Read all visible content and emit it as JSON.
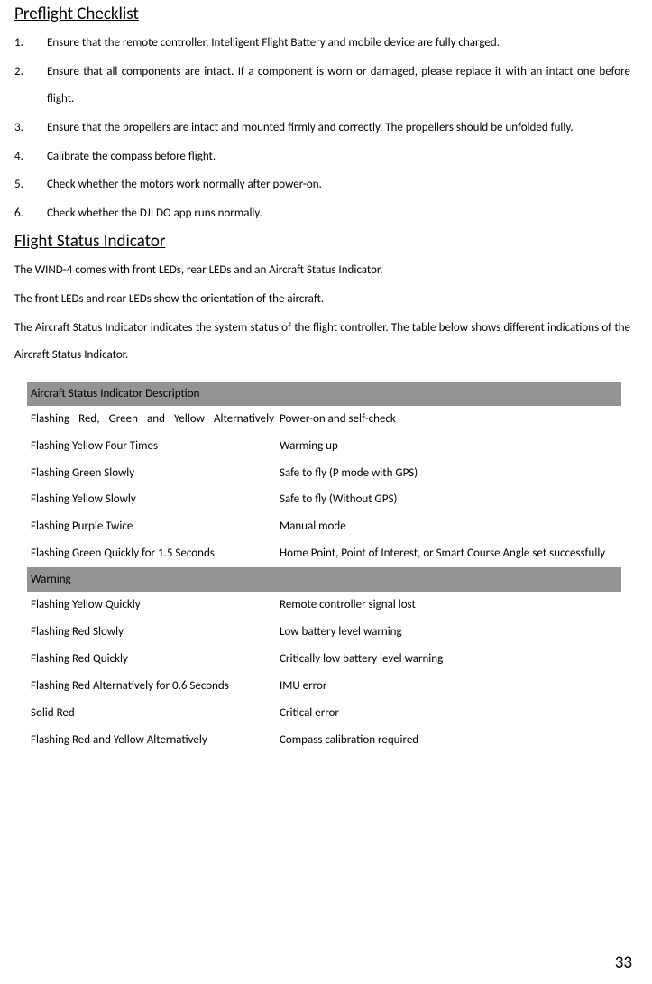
{
  "heading1": "Preflight Checklist",
  "checklist": [
    {
      "num": "1.",
      "text": "Ensure that the remote controller, Intelligent Flight Battery and mobile device are fully charged."
    },
    {
      "num": "2.",
      "text": "Ensure that all components are intact. If a component is worn or damaged, please replace it with an intact one before flight."
    },
    {
      "num": "3.",
      "text": "Ensure that the propellers are intact and mounted firmly and correctly. The propellers should be unfolded fully."
    },
    {
      "num": "4.",
      "text": "Calibrate the compass before flight."
    },
    {
      "num": "5.",
      "text": "Check whether the motors work normally after power-on."
    },
    {
      "num": "6.",
      "text": "Check whether the DJI DO app runs normally."
    }
  ],
  "heading2": "Flight Status Indicator",
  "para1": "The WIND-4 comes with front LEDs, rear LEDs and an Aircraft Status Indicator.",
  "para2": "The front LEDs and rear LEDs show the orientation of the aircraft.",
  "para3": "The Aircraft Status Indicator indicates the system status of the flight controller. The table below shows different indications of the Aircraft Status Indicator.",
  "table": {
    "header1": "Aircraft Status Indicator Description",
    "rows1": [
      {
        "left": "Flashing Red, Green and Yellow Alternatively",
        "right": "Power-on and self-check",
        "justify": true
      },
      {
        "left": "Flashing Yellow Four Times",
        "right": "Warming up"
      },
      {
        "left": "Flashing Green Slowly",
        "right": "Safe to fly (P mode with GPS)"
      },
      {
        "left": "Flashing Yellow Slowly",
        "right": "Safe to fly (Without GPS)"
      },
      {
        "left": "Flashing Purple Twice",
        "right": "Manual mode"
      },
      {
        "left": "Flashing Green Quickly for 1.5 Seconds",
        "right": "Home Point, Point of Interest, or Smart Course Angle set successfully"
      }
    ],
    "header2": "Warning",
    "rows2": [
      {
        "left": "Flashing Yellow Quickly",
        "right": "Remote controller signal lost"
      },
      {
        "left": "Flashing Red Slowly",
        "right": "Low battery level warning"
      },
      {
        "left": "Flashing Red Quickly",
        "right": "Critically low battery level warning"
      },
      {
        "left": "Flashing Red Alternatively for 0.6 Seconds",
        "right": "IMU error"
      },
      {
        "left": "Solid Red",
        "right": "Critical error"
      },
      {
        "left": "Flashing Red and Yellow Alternatively",
        "right": "Compass calibration required"
      }
    ]
  },
  "pagenum": "33"
}
